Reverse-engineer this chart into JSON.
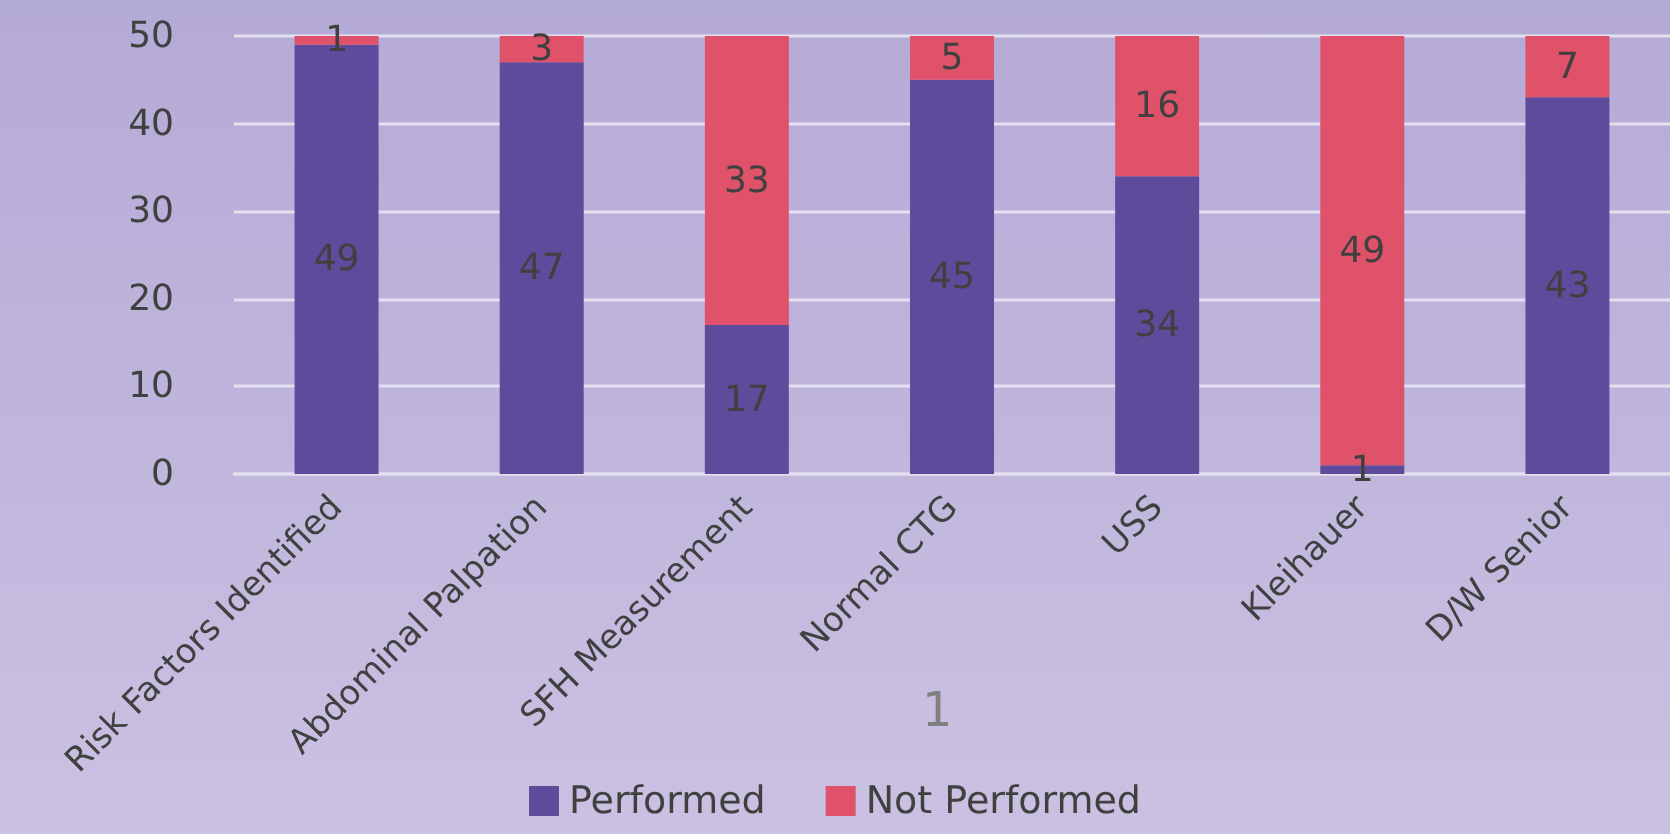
{
  "chart_data": {
    "type": "bar",
    "stacked": true,
    "categories": [
      "Risk Factors Identified",
      "Abdominal Palpation",
      "SFH Measurement",
      "Normal CTG",
      "USS",
      "Kleihauer",
      "D/W Senior"
    ],
    "series": [
      {
        "name": "Performed",
        "color": "#5f4b9b",
        "values": [
          49,
          47,
          17,
          45,
          34,
          1,
          43
        ]
      },
      {
        "name": "Not Performed",
        "color": "#e0526a",
        "values": [
          1,
          3,
          33,
          5,
          16,
          49,
          7
        ]
      }
    ],
    "ylim": [
      0,
      50
    ],
    "yticks": [
      0,
      10,
      20,
      30,
      40,
      50
    ],
    "grid": "y",
    "legend": "bottom",
    "data_labels": true,
    "annotations": [
      "1"
    ]
  }
}
